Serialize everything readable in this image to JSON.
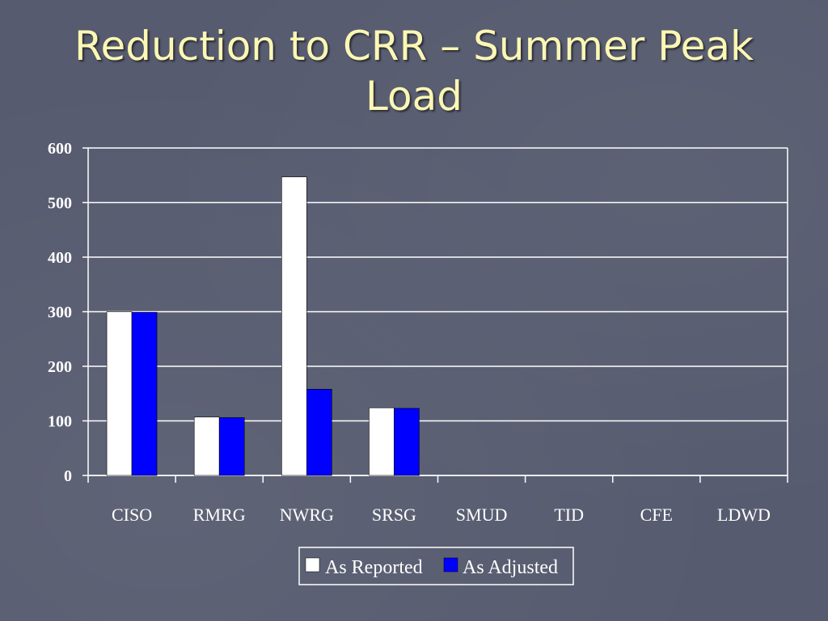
{
  "slide": {
    "title_line1": "Reduction to CRR – Summer Peak",
    "title_line2": "Load",
    "background_color": "#575b6f",
    "title_color": "#fbf7b4"
  },
  "chart_data": {
    "type": "bar",
    "title": "",
    "xlabel": "",
    "ylabel": "",
    "categories": [
      "CISO",
      "RMRG",
      "NWRG",
      "SRSG",
      "SMUD",
      "TID",
      "CFE",
      "LDWD"
    ],
    "series": [
      {
        "name": "As Reported",
        "values": [
          300,
          107,
          547,
          124,
          0,
          0,
          0,
          0
        ],
        "color": "#ffffff"
      },
      {
        "name": "As Adjusted",
        "values": [
          299,
          106,
          158,
          123,
          0,
          0,
          0,
          0
        ],
        "color": "#0000ff"
      }
    ],
    "ylim": [
      0,
      600
    ],
    "yticks": [
      0,
      100,
      200,
      300,
      400,
      500,
      600
    ],
    "grid": true,
    "legend_position": "bottom"
  }
}
